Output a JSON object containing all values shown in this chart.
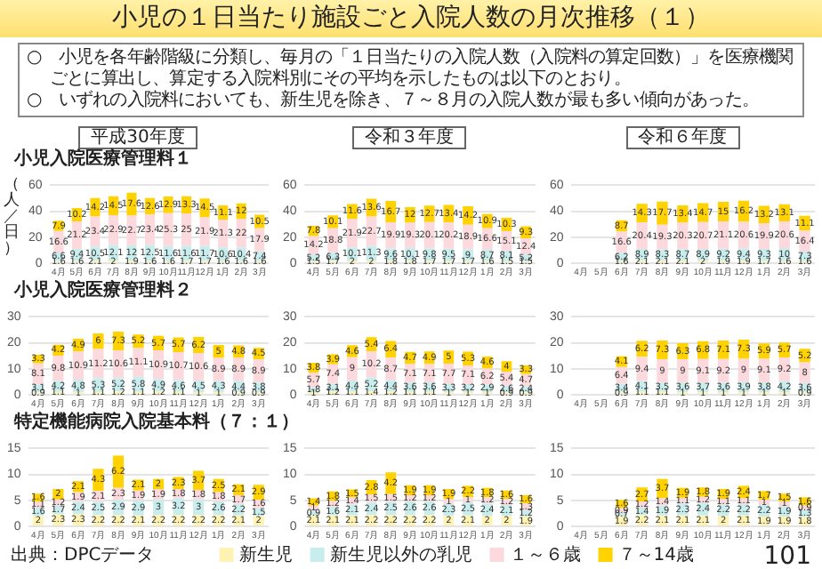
{
  "chart_data": [
    {
      "type": "bar",
      "stacked": true,
      "data_labels": true,
      "grid": "y",
      "title": "平成30年度",
      "subtitle": "小児入院医療管理料１",
      "ylabel": "（人／日）",
      "annotations": [
        "小児の１日当たり施設ごと入院人数の月次推移（１）",
        "○　小児を各年齢階級に分類し、毎月の「１日当たりの入院人数（入院料の算定回数）」を医療機関ごとに算出し、算定する入院料別にその平均を示したものは以下のとおり。",
        "○　いずれの入院料においても、新生児を除き、７～８月の入院人数が最も多い傾向があった。"
      ],
      "ylim": [
        0,
        60
      ],
      "yticks": [
        0,
        20,
        40,
        60
      ],
      "categories": [
        "4月",
        "5月",
        "6月",
        "7月",
        "8月",
        "9月",
        "10月",
        "11月",
        "12月",
        "1月",
        "2月",
        "3月"
      ],
      "series": [
        {
          "color": "#fff2b3",
          "values": [
            1.6,
            1.6,
            2.1,
            2.0,
            1.9,
            1.6,
            1.6,
            1.7,
            1.7,
            1.6,
            1.6,
            1.6
          ]
        },
        {
          "color": "#c9ecec",
          "values": [
            6.6,
            9.4,
            10.5,
            12.1,
            12.0,
            12.5,
            11.6,
            11.6,
            11.7,
            10.6,
            10.4,
            7.4
          ]
        },
        {
          "color": "#fbd9dd",
          "values": [
            16.6,
            21.2,
            23.4,
            22.9,
            22.7,
            23.4,
            25.3,
            25.0,
            21.9,
            21.3,
            22.0,
            17.9
          ]
        },
        {
          "color": "#ffd200",
          "values": [
            7.9,
            10.2,
            14.2,
            14.5,
            17.6,
            12.6,
            12.9,
            13.3,
            14.5,
            11.1,
            12.0,
            10.5
          ]
        }
      ]
    },
    {
      "type": "bar",
      "stacked": true,
      "data_labels": true,
      "grid": "y",
      "title": "令和３年度",
      "ylim": [
        0,
        60
      ],
      "yticks": [
        0,
        20,
        40,
        60
      ],
      "categories": [
        "4月",
        "5月",
        "6月",
        "7月",
        "8月",
        "9月",
        "10月",
        "11月",
        "12月",
        "1月",
        "2月",
        "3月"
      ],
      "series": [
        {
          "color": "#fff2b3",
          "values": [
            1.5,
            1.7,
            2.0,
            2.0,
            1.8,
            1.8,
            1.7,
            1.7,
            1.7,
            1.6,
            1.5,
            1.5
          ]
        },
        {
          "color": "#c9ecec",
          "values": [
            5.2,
            6.3,
            10.1,
            11.3,
            9.6,
            10.1,
            9.8,
            9.5,
            9.0,
            8.7,
            8.1,
            5.2
          ]
        },
        {
          "color": "#fbd9dd",
          "values": [
            14.2,
            18.8,
            21.9,
            22.7,
            19.9,
            19.3,
            20.1,
            20.2,
            18.9,
            16.6,
            15.1,
            12.4
          ]
        },
        {
          "color": "#ffd200",
          "values": [
            7.8,
            10.1,
            11.6,
            13.6,
            16.7,
            12.0,
            12.7,
            13.4,
            14.2,
            10.9,
            10.3,
            9.3
          ]
        }
      ]
    },
    {
      "type": "bar",
      "stacked": true,
      "data_labels": true,
      "grid": "y",
      "title": "令和６年度",
      "ylim": [
        0,
        60
      ],
      "yticks": [
        0,
        20,
        40,
        60
      ],
      "categories": [
        "4月",
        "5月",
        "6月",
        "7月",
        "8月",
        "9月",
        "10月",
        "11月",
        "12月",
        "1月",
        "2月",
        "3月"
      ],
      "series": [
        {
          "color": "#fff2b3",
          "values": [
            null,
            null,
            1.6,
            2.1,
            2.1,
            2.1,
            2.0,
            1.9,
            1.9,
            1.7,
            1.6,
            1.6
          ]
        },
        {
          "color": "#c9ecec",
          "values": [
            null,
            null,
            6.2,
            8.9,
            8.3,
            8.7,
            8.9,
            9.2,
            9.4,
            9.3,
            10.0,
            7.3
          ]
        },
        {
          "color": "#fbd9dd",
          "values": [
            null,
            null,
            16.6,
            20.4,
            19.3,
            20.3,
            20.7,
            21.1,
            20.6,
            19.9,
            20.6,
            16.4
          ]
        },
        {
          "color": "#ffd200",
          "values": [
            null,
            null,
            8.7,
            14.3,
            17.7,
            13.4,
            14.7,
            15.0,
            16.2,
            13.2,
            13.1,
            11.1
          ]
        }
      ]
    },
    {
      "type": "bar",
      "stacked": true,
      "data_labels": true,
      "grid": "y",
      "subtitle": "小児入院医療管理料２",
      "ylim": [
        0,
        30
      ],
      "yticks": [
        0,
        10,
        20,
        30
      ],
      "categories": [
        "4月",
        "5月",
        "6月",
        "7月",
        "8月",
        "9月",
        "10月",
        "11月",
        "12月",
        "1月",
        "2月",
        "3月"
      ],
      "series": [
        {
          "color": "#fff2b3",
          "values": [
            0.9,
            1.1,
            1.0,
            1.1,
            1.2,
            1.1,
            1.2,
            1.1,
            1.0,
            1.0,
            0.9,
            0.9
          ]
        },
        {
          "color": "#c9ecec",
          "values": [
            3.1,
            4.2,
            4.8,
            5.3,
            5.2,
            5.8,
            4.9,
            4.6,
            4.5,
            4.3,
            4.4,
            3.8
          ]
        },
        {
          "color": "#fbd9dd",
          "values": [
            8.1,
            9.8,
            10.9,
            11.2,
            10.6,
            11.1,
            10.9,
            10.7,
            10.6,
            8.9,
            8.9,
            8.9
          ]
        },
        {
          "color": "#ffd200",
          "values": [
            3.3,
            4.2,
            4.9,
            6.0,
            7.3,
            5.2,
            5.7,
            5.7,
            6.2,
            5.0,
            4.8,
            4.5
          ]
        }
      ]
    },
    {
      "type": "bar",
      "stacked": true,
      "data_labels": true,
      "grid": "y",
      "ylim": [
        0,
        30
      ],
      "yticks": [
        0,
        10,
        20,
        30
      ],
      "categories": [
        "4月",
        "5月",
        "6月",
        "7月",
        "8月",
        "9月",
        "10月",
        "11月",
        "12月",
        "1月",
        "2月",
        "3月"
      ],
      "series": [
        {
          "color": "#fff2b3",
          "values": [
            1.0,
            1.2,
            1.1,
            1.4,
            1.2,
            1.1,
            1.1,
            1.0,
            1.0,
            1.0,
            0.9,
            0.9
          ]
        },
        {
          "color": "#c9ecec",
          "values": [
            1.8,
            3.1,
            4.4,
            5.2,
            4.4,
            3.6,
            3.6,
            3.3,
            3.2,
            2.9,
            2.6,
            2.4
          ]
        },
        {
          "color": "#fbd9dd",
          "values": [
            5.7,
            7.4,
            9.0,
            10.2,
            8.7,
            7.1,
            7.1,
            7.7,
            7.1,
            6.2,
            5.4,
            4.7
          ]
        },
        {
          "color": "#ffd200",
          "values": [
            3.8,
            3.9,
            4.6,
            5.4,
            6.4,
            4.7,
            4.9,
            5.0,
            5.3,
            4.6,
            4.0,
            3.3
          ]
        }
      ]
    },
    {
      "type": "bar",
      "stacked": true,
      "data_labels": true,
      "grid": "y",
      "ylim": [
        0,
        30
      ],
      "yticks": [
        0,
        10,
        20,
        30
      ],
      "categories": [
        "4月",
        "5月",
        "6月",
        "7月",
        "8月",
        "9月",
        "10月",
        "11月",
        "12月",
        "1月",
        "2月",
        "3月"
      ],
      "series": [
        {
          "color": "#fff2b3",
          "values": [
            null,
            null,
            0.9,
            1.1,
            1.1,
            1.0,
            1.0,
            1.0,
            1.0,
            1.0,
            1.0,
            0.9
          ]
        },
        {
          "color": "#c9ecec",
          "values": [
            null,
            null,
            3.4,
            4.1,
            3.5,
            3.6,
            3.7,
            3.6,
            3.9,
            3.8,
            4.2,
            3.6
          ]
        },
        {
          "color": "#fbd9dd",
          "values": [
            null,
            null,
            6.4,
            9.4,
            9.0,
            9.0,
            9.1,
            9.2,
            9.0,
            9.1,
            9.2,
            8.0
          ]
        },
        {
          "color": "#ffd200",
          "values": [
            null,
            null,
            4.1,
            6.2,
            7.3,
            6.3,
            6.8,
            7.1,
            7.3,
            5.9,
            5.7,
            5.2
          ]
        }
      ]
    },
    {
      "type": "bar",
      "stacked": true,
      "data_labels": true,
      "grid": "y",
      "subtitle": "特定機能病院入院基本料（７：１）",
      "annotations": [
        "出典：DPCデータ"
      ],
      "ylim": [
        0,
        15
      ],
      "yticks": [
        0,
        5,
        10,
        15
      ],
      "categories": [
        "4月",
        "5月",
        "6月",
        "7月",
        "8月",
        "9月",
        "10月",
        "11月",
        "12月",
        "1月",
        "2月",
        "3月"
      ],
      "series": [
        {
          "color": "#fff2b3",
          "values": [
            2.0,
            2.3,
            2.3,
            2.2,
            2.2,
            2.1,
            2.2,
            2.2,
            2.2,
            2.2,
            2.1,
            2.0
          ]
        },
        {
          "color": "#c9ecec",
          "values": [
            1.6,
            1.7,
            2.4,
            2.5,
            2.9,
            2.9,
            3.0,
            3.2,
            3.0,
            2.6,
            2.2,
            1.5
          ]
        },
        {
          "color": "#fbd9dd",
          "values": [
            1.1,
            1.2,
            1.9,
            2.1,
            2.3,
            1.9,
            1.9,
            1.8,
            1.8,
            1.8,
            1.7,
            1.6
          ]
        },
        {
          "color": "#ffd200",
          "values": [
            1.6,
            2.0,
            2.1,
            4.3,
            6.2,
            2.1,
            2.0,
            2.3,
            3.7,
            2.5,
            2.1,
            2.9
          ]
        }
      ]
    },
    {
      "type": "bar",
      "stacked": true,
      "data_labels": true,
      "grid": "y",
      "legend": "bottom",
      "ylim": [
        0,
        15
      ],
      "yticks": [
        0,
        5,
        10,
        15
      ],
      "categories": [
        "4月",
        "5月",
        "6月",
        "7月",
        "8月",
        "9月",
        "10月",
        "11月",
        "12月",
        "1月",
        "2月",
        "3月"
      ],
      "series": [
        {
          "name": "新生児",
          "color": "#fff2b3",
          "values": [
            2.1,
            2.1,
            2.1,
            2.2,
            2.2,
            2.2,
            2.2,
            2.0,
            2.1,
            2.0,
            2.0,
            1.9
          ]
        },
        {
          "name": "新生児以外の乳児",
          "color": "#c9ecec",
          "values": [
            0.9,
            1.6,
            2.1,
            2.4,
            2.5,
            2.6,
            2.6,
            2.3,
            2.5,
            2.4,
            2.1,
            1.2
          ]
        },
        {
          "name": "１～６歳",
          "color": "#fbd9dd",
          "values": [
            1.0,
            1.2,
            1.4,
            1.5,
            1.5,
            1.2,
            1.2,
            1.0,
            1.0,
            1.2,
            1.2,
            1.3
          ]
        },
        {
          "name": "７～14歳",
          "color": "#ffd200",
          "values": [
            1.4,
            1.8,
            1.5,
            2.8,
            4.2,
            1.9,
            1.9,
            1.9,
            2.2,
            1.8,
            1.6,
            1.6
          ]
        }
      ]
    },
    {
      "type": "bar",
      "stacked": true,
      "data_labels": true,
      "grid": "y",
      "annotations": [
        "101"
      ],
      "ylim": [
        0,
        15
      ],
      "yticks": [
        0,
        5,
        10,
        15
      ],
      "categories": [
        "4月",
        "5月",
        "6月",
        "7月",
        "8月",
        "9月",
        "10月",
        "11月",
        "12月",
        "1月",
        "2月",
        "3月"
      ],
      "series": [
        {
          "color": "#fff2b3",
          "values": [
            null,
            null,
            1.9,
            2.2,
            2.1,
            2.1,
            2.1,
            2.0,
            2.1,
            1.9,
            1.9,
            1.8
          ]
        },
        {
          "color": "#c9ecec",
          "values": [
            null,
            null,
            0.7,
            1.4,
            1.9,
            2.3,
            2.4,
            2.2,
            2.2,
            2.2,
            1.9,
            1.3
          ]
        },
        {
          "color": "#fbd9dd",
          "values": [
            null,
            null,
            0.9,
            1.2,
            1.4,
            1.1,
            1.2,
            1.1,
            1.1,
            1.0,
            1.0,
            0.9
          ]
        },
        {
          "color": "#ffd200",
          "values": [
            null,
            null,
            1.6,
            2.7,
            3.7,
            1.9,
            1.8,
            1.9,
            2.4,
            1.7,
            1.5,
            1.6
          ]
        }
      ]
    }
  ]
}
